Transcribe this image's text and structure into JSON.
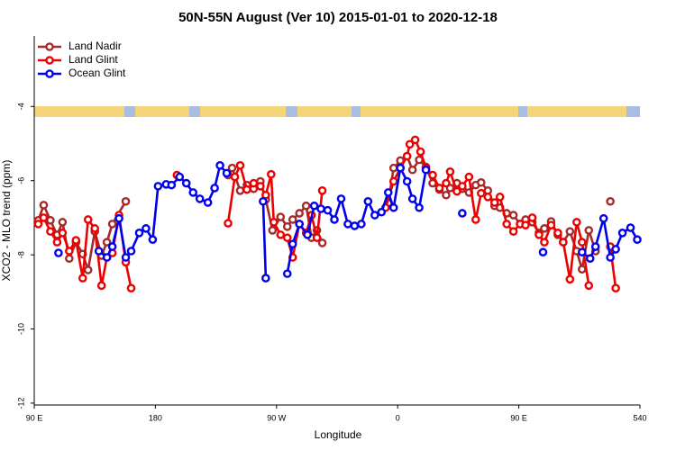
{
  "chart_data": {
    "type": "line",
    "title": "50N-55N August (Ver 10)   2015-01-01 to 2020-12-18",
    "x_label": "Longitude",
    "y_label": "XCO2 - MLO trend (ppm)",
    "xlim": [
      90,
      540
    ],
    "xticks": [
      {
        "value": 90,
        "label": "90 E"
      },
      180,
      {
        "value": 270,
        "label": "90 W"
      },
      {
        "value": 360,
        "label": "0"
      },
      {
        "value": 450,
        "label": "90 E"
      },
      540
    ],
    "ylim": [
      -12.05,
      -2.1
    ],
    "yticks": [
      -12,
      -10,
      -8,
      -6,
      -4
    ],
    "legend": "top-left",
    "series": [
      {
        "name": "Land Nadir",
        "color": "#a52a2a",
        "x": [
          93,
          97,
          102,
          107,
          111,
          116,
          121,
          126,
          130,
          135,
          140,
          144,
          148,
          158,
          195,
          234,
          237,
          243,
          248,
          253,
          258,
          262,
          267,
          273,
          278,
          282,
          287,
          292,
          296,
          300,
          304,
          330,
          353,
          357,
          362,
          367,
          371,
          376,
          381,
          386,
          391,
          396,
          399,
          404,
          408,
          413,
          418,
          422,
          427,
          432,
          436,
          441,
          446,
          451,
          455,
          460,
          465,
          469,
          474,
          479,
          483,
          488,
          493,
          497,
          502,
          507,
          512,
          518
        ],
        "values": [
          -7.07,
          -6.66,
          -7.07,
          -7.46,
          -7.12,
          -8.1,
          -7.66,
          -7.98,
          -8.41,
          -7.37,
          -8.02,
          -7.66,
          -7.17,
          -6.56,
          null,
          -5.85,
          -5.66,
          -6.27,
          -6.12,
          -6.22,
          -6.02,
          -6.51,
          -7.34,
          -6.98,
          -7.24,
          -7.05,
          -6.88,
          -6.68,
          -7.54,
          -7.34,
          -7.68,
          null,
          -6.61,
          -5.66,
          -5.46,
          -5.34,
          -5.71,
          -5.44,
          -5.63,
          -6.07,
          -6.24,
          -6.39,
          -6.2,
          -6.07,
          -6.22,
          -6.32,
          -6.12,
          -6.05,
          -6.27,
          -6.68,
          -6.73,
          -6.88,
          -6.93,
          -7.17,
          -7.05,
          -7.12,
          -7.41,
          -7.29,
          -7.1,
          -7.46,
          -7.66,
          -7.37,
          -7.9,
          -8.39,
          -7.34,
          -7.9,
          null,
          -6.56
        ]
      },
      {
        "name": "Land Glint",
        "color": "#ee0000",
        "x": [
          93,
          97,
          102,
          107,
          111,
          116,
          121,
          126,
          130,
          135,
          140,
          144,
          148,
          153,
          158,
          162,
          180,
          196,
          215,
          234,
          239,
          243,
          248,
          253,
          258,
          262,
          266,
          268,
          273,
          278,
          282,
          287,
          292,
          296,
          300,
          304,
          330,
          351,
          357,
          362,
          367,
          369,
          373,
          377,
          381,
          386,
          391,
          396,
          399,
          404,
          408,
          413,
          418,
          422,
          427,
          432,
          436,
          441,
          446,
          451,
          455,
          460,
          465,
          469,
          474,
          479,
          483,
          488,
          493,
          497,
          502,
          510,
          518,
          522
        ],
        "values": [
          -7.17,
          -7.0,
          -7.37,
          -7.66,
          -7.41,
          -7.9,
          -7.61,
          -8.63,
          -7.05,
          -7.29,
          -8.83,
          -8.07,
          -7.95,
          -6.93,
          -8.2,
          -8.9,
          null,
          -5.85,
          null,
          -7.15,
          -5.9,
          -5.59,
          -6.24,
          -6.07,
          -6.15,
          -6.39,
          -5.83,
          -7.12,
          -7.46,
          -7.54,
          -8.07,
          -7.17,
          -7.41,
          -6.93,
          -7.54,
          -6.27,
          null,
          -6.73,
          -6.02,
          -5.66,
          -5.34,
          -5.02,
          -4.9,
          -5.22,
          -5.66,
          -5.85,
          -6.2,
          -6.07,
          -5.76,
          -6.29,
          -6.15,
          -5.9,
          -7.05,
          -6.34,
          -6.44,
          -6.59,
          -6.44,
          -7.17,
          -7.37,
          -7.17,
          -7.2,
          -7.0,
          -7.46,
          -7.66,
          -7.2,
          -7.41,
          -7.66,
          -8.66,
          -7.12,
          -7.66,
          -8.83,
          null,
          -7.78,
          -8.9
        ]
      },
      {
        "name": "Ocean Glint",
        "color": "#0000ee",
        "x": [
          108,
          123,
          138,
          144,
          148,
          153,
          158,
          162,
          168,
          173,
          178,
          182,
          188,
          192,
          198,
          203,
          208,
          213,
          219,
          224,
          228,
          233,
          245,
          260,
          262,
          270,
          278,
          282,
          287,
          293,
          298,
          303,
          308,
          313,
          318,
          323,
          328,
          333,
          338,
          343,
          348,
          353,
          357,
          362,
          367,
          371,
          376,
          381,
          395,
          408,
          430,
          468,
          480,
          497,
          503,
          507,
          513,
          518,
          522,
          527,
          533,
          538
        ],
        "values": [
          -7.95,
          null,
          -7.9,
          -8.07,
          -7.78,
          -7.02,
          -8.07,
          -7.9,
          -7.41,
          -7.29,
          -7.59,
          -6.15,
          -6.1,
          -6.12,
          -5.9,
          -6.07,
          -6.32,
          -6.49,
          -6.59,
          -6.2,
          -5.59,
          -5.8,
          null,
          -6.56,
          -8.63,
          null,
          -8.51,
          -7.71,
          -7.17,
          -7.46,
          -6.68,
          -6.76,
          -6.8,
          -7.05,
          -6.49,
          -7.17,
          -7.22,
          -7.17,
          -6.56,
          -6.93,
          -6.85,
          -6.32,
          -6.73,
          -5.66,
          -6.02,
          -6.49,
          -6.73,
          -5.71,
          null,
          -6.88,
          null,
          -7.93,
          null,
          -7.93,
          -8.1,
          -7.78,
          -7.02,
          -8.07,
          -7.85,
          -7.41,
          -7.27,
          -7.59
        ]
      }
    ]
  }
}
